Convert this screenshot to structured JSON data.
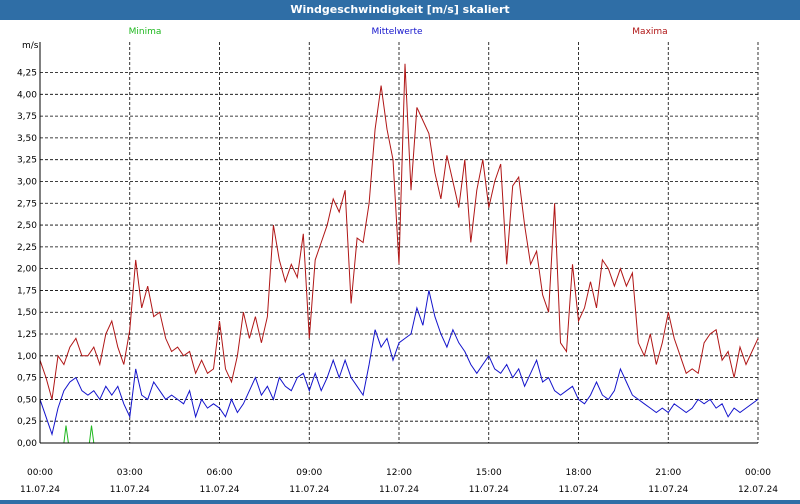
{
  "window_title": "Windgeschwindigkeit [m/s] skaliert",
  "colors": {
    "min": "#1fb81f",
    "avg": "#1414cc",
    "max": "#b01616",
    "grid": "#000000",
    "titlebar": "#2f6ea6"
  },
  "chart_data": {
    "type": "line",
    "title": "Windgeschwindigkeit [m/s] skaliert",
    "ylabel": "m/s",
    "ylim": [
      0,
      4.6
    ],
    "xlim": [
      0,
      24
    ],
    "legend": [
      "Minima",
      "Mittelwerte",
      "Maxima"
    ],
    "y_ticks": [
      "0,00",
      "0,25",
      "0,50",
      "0,75",
      "1,00",
      "1,25",
      "1,50",
      "1,75",
      "2,00",
      "2,25",
      "2,50",
      "2,75",
      "3,00",
      "3,25",
      "3,50",
      "3,75",
      "4,00",
      "4,25"
    ],
    "x_ticks": [
      {
        "time": "00:00",
        "date": "11.07.24"
      },
      {
        "time": "03:00",
        "date": "11.07.24"
      },
      {
        "time": "06:00",
        "date": "11.07.24"
      },
      {
        "time": "09:00",
        "date": "11.07.24"
      },
      {
        "time": "12:00",
        "date": "11.07.24"
      },
      {
        "time": "15:00",
        "date": "11.07.24"
      },
      {
        "time": "18:00",
        "date": "11.07.24"
      },
      {
        "time": "21:00",
        "date": "11.07.24"
      },
      {
        "time": "00:00",
        "date": "12.07.24"
      }
    ],
    "series": [
      {
        "name": "Minima",
        "key": "min",
        "points": [
          [
            0,
            0
          ],
          [
            0.8,
            0
          ],
          [
            0.87,
            0.2
          ],
          [
            0.95,
            0
          ],
          [
            1.65,
            0
          ],
          [
            1.72,
            0.2
          ],
          [
            1.8,
            0
          ],
          [
            24,
            0
          ]
        ]
      },
      {
        "name": "Mittelwerte",
        "key": "avg",
        "points": [
          [
            0,
            0.5
          ],
          [
            0.2,
            0.3
          ],
          [
            0.4,
            0.1
          ],
          [
            0.6,
            0.4
          ],
          [
            0.8,
            0.6
          ],
          [
            1,
            0.7
          ],
          [
            1.2,
            0.75
          ],
          [
            1.4,
            0.6
          ],
          [
            1.6,
            0.55
          ],
          [
            1.8,
            0.6
          ],
          [
            2,
            0.5
          ],
          [
            2.2,
            0.65
          ],
          [
            2.4,
            0.55
          ],
          [
            2.6,
            0.65
          ],
          [
            2.8,
            0.45
          ],
          [
            3,
            0.3
          ],
          [
            3.2,
            0.85
          ],
          [
            3.4,
            0.55
          ],
          [
            3.6,
            0.5
          ],
          [
            3.8,
            0.7
          ],
          [
            4,
            0.6
          ],
          [
            4.2,
            0.5
          ],
          [
            4.4,
            0.55
          ],
          [
            4.6,
            0.5
          ],
          [
            4.8,
            0.45
          ],
          [
            5,
            0.6
          ],
          [
            5.2,
            0.3
          ],
          [
            5.4,
            0.5
          ],
          [
            5.6,
            0.4
          ],
          [
            5.8,
            0.45
          ],
          [
            6,
            0.4
          ],
          [
            6.2,
            0.3
          ],
          [
            6.4,
            0.5
          ],
          [
            6.6,
            0.35
          ],
          [
            6.8,
            0.45
          ],
          [
            7,
            0.6
          ],
          [
            7.2,
            0.75
          ],
          [
            7.4,
            0.55
          ],
          [
            7.6,
            0.65
          ],
          [
            7.8,
            0.5
          ],
          [
            8,
            0.75
          ],
          [
            8.2,
            0.65
          ],
          [
            8.4,
            0.6
          ],
          [
            8.6,
            0.75
          ],
          [
            8.8,
            0.8
          ],
          [
            9,
            0.6
          ],
          [
            9.2,
            0.8
          ],
          [
            9.4,
            0.6
          ],
          [
            9.6,
            0.75
          ],
          [
            9.8,
            0.95
          ],
          [
            10,
            0.75
          ],
          [
            10.2,
            0.95
          ],
          [
            10.4,
            0.75
          ],
          [
            10.6,
            0.65
          ],
          [
            10.8,
            0.55
          ],
          [
            11,
            0.9
          ],
          [
            11.2,
            1.3
          ],
          [
            11.4,
            1.1
          ],
          [
            11.6,
            1.2
          ],
          [
            11.8,
            0.95
          ],
          [
            12,
            1.15
          ],
          [
            12.2,
            1.2
          ],
          [
            12.4,
            1.25
          ],
          [
            12.6,
            1.55
          ],
          [
            12.8,
            1.35
          ],
          [
            13,
            1.75
          ],
          [
            13.2,
            1.45
          ],
          [
            13.4,
            1.25
          ],
          [
            13.6,
            1.1
          ],
          [
            13.8,
            1.3
          ],
          [
            14,
            1.15
          ],
          [
            14.2,
            1.05
          ],
          [
            14.4,
            0.9
          ],
          [
            14.6,
            0.8
          ],
          [
            14.8,
            0.9
          ],
          [
            15,
            1.0
          ],
          [
            15.2,
            0.85
          ],
          [
            15.4,
            0.8
          ],
          [
            15.6,
            0.9
          ],
          [
            15.8,
            0.75
          ],
          [
            16,
            0.85
          ],
          [
            16.2,
            0.65
          ],
          [
            16.4,
            0.8
          ],
          [
            16.6,
            0.95
          ],
          [
            16.8,
            0.7
          ],
          [
            17,
            0.75
          ],
          [
            17.2,
            0.6
          ],
          [
            17.4,
            0.55
          ],
          [
            17.6,
            0.6
          ],
          [
            17.8,
            0.65
          ],
          [
            18,
            0.5
          ],
          [
            18.2,
            0.45
          ],
          [
            18.4,
            0.55
          ],
          [
            18.6,
            0.7
          ],
          [
            18.8,
            0.55
          ],
          [
            19,
            0.5
          ],
          [
            19.2,
            0.6
          ],
          [
            19.4,
            0.85
          ],
          [
            19.6,
            0.7
          ],
          [
            19.8,
            0.55
          ],
          [
            20,
            0.5
          ],
          [
            20.2,
            0.45
          ],
          [
            20.4,
            0.4
          ],
          [
            20.6,
            0.35
          ],
          [
            20.8,
            0.4
          ],
          [
            21,
            0.35
          ],
          [
            21.2,
            0.45
          ],
          [
            21.4,
            0.4
          ],
          [
            21.6,
            0.35
          ],
          [
            21.8,
            0.4
          ],
          [
            22,
            0.5
          ],
          [
            22.2,
            0.45
          ],
          [
            22.4,
            0.5
          ],
          [
            22.6,
            0.4
          ],
          [
            22.8,
            0.45
          ],
          [
            23,
            0.3
          ],
          [
            23.2,
            0.4
          ],
          [
            23.4,
            0.35
          ],
          [
            23.6,
            0.4
          ],
          [
            24,
            0.5
          ]
        ]
      },
      {
        "name": "Maxima",
        "key": "max",
        "points": [
          [
            0,
            0.95
          ],
          [
            0.2,
            0.75
          ],
          [
            0.4,
            0.5
          ],
          [
            0.6,
            1.0
          ],
          [
            0.8,
            0.9
          ],
          [
            1,
            1.1
          ],
          [
            1.2,
            1.2
          ],
          [
            1.4,
            1.0
          ],
          [
            1.6,
            1.0
          ],
          [
            1.8,
            1.1
          ],
          [
            2,
            0.9
          ],
          [
            2.2,
            1.25
          ],
          [
            2.4,
            1.4
          ],
          [
            2.6,
            1.1
          ],
          [
            2.8,
            0.9
          ],
          [
            3,
            1.3
          ],
          [
            3.2,
            2.1
          ],
          [
            3.4,
            1.55
          ],
          [
            3.6,
            1.8
          ],
          [
            3.8,
            1.45
          ],
          [
            4,
            1.5
          ],
          [
            4.2,
            1.2
          ],
          [
            4.4,
            1.05
          ],
          [
            4.6,
            1.1
          ],
          [
            4.8,
            1.0
          ],
          [
            5,
            1.05
          ],
          [
            5.2,
            0.8
          ],
          [
            5.4,
            0.95
          ],
          [
            5.6,
            0.8
          ],
          [
            5.8,
            0.85
          ],
          [
            6,
            1.4
          ],
          [
            6.2,
            0.85
          ],
          [
            6.4,
            0.7
          ],
          [
            6.6,
            1.0
          ],
          [
            6.8,
            1.5
          ],
          [
            7,
            1.2
          ],
          [
            7.2,
            1.45
          ],
          [
            7.4,
            1.15
          ],
          [
            7.6,
            1.45
          ],
          [
            7.8,
            2.5
          ],
          [
            8,
            2.1
          ],
          [
            8.2,
            1.85
          ],
          [
            8.4,
            2.05
          ],
          [
            8.6,
            1.9
          ],
          [
            8.8,
            2.4
          ],
          [
            9,
            1.2
          ],
          [
            9.2,
            2.1
          ],
          [
            9.4,
            2.3
          ],
          [
            9.6,
            2.5
          ],
          [
            9.8,
            2.8
          ],
          [
            10,
            2.65
          ],
          [
            10.2,
            2.9
          ],
          [
            10.4,
            1.6
          ],
          [
            10.6,
            2.35
          ],
          [
            10.8,
            2.3
          ],
          [
            11,
            2.75
          ],
          [
            11.2,
            3.6
          ],
          [
            11.4,
            4.1
          ],
          [
            11.6,
            3.6
          ],
          [
            11.8,
            3.25
          ],
          [
            12,
            2.05
          ],
          [
            12.2,
            4.35
          ],
          [
            12.4,
            2.9
          ],
          [
            12.6,
            3.85
          ],
          [
            12.8,
            3.7
          ],
          [
            13,
            3.55
          ],
          [
            13.2,
            3.1
          ],
          [
            13.4,
            2.8
          ],
          [
            13.6,
            3.3
          ],
          [
            13.8,
            3.0
          ],
          [
            14,
            2.7
          ],
          [
            14.2,
            3.25
          ],
          [
            14.4,
            2.3
          ],
          [
            14.6,
            2.9
          ],
          [
            14.8,
            3.25
          ],
          [
            15,
            2.7
          ],
          [
            15.2,
            3.0
          ],
          [
            15.4,
            3.2
          ],
          [
            15.6,
            2.05
          ],
          [
            15.8,
            2.95
          ],
          [
            16,
            3.05
          ],
          [
            16.2,
            2.5
          ],
          [
            16.4,
            2.05
          ],
          [
            16.6,
            2.2
          ],
          [
            16.8,
            1.7
          ],
          [
            17,
            1.5
          ],
          [
            17.2,
            2.75
          ],
          [
            17.4,
            1.15
          ],
          [
            17.6,
            1.05
          ],
          [
            17.8,
            2.05
          ],
          [
            18,
            1.4
          ],
          [
            18.2,
            1.55
          ],
          [
            18.4,
            1.85
          ],
          [
            18.6,
            1.55
          ],
          [
            18.8,
            2.1
          ],
          [
            19,
            2.0
          ],
          [
            19.2,
            1.8
          ],
          [
            19.4,
            2.0
          ],
          [
            19.6,
            1.8
          ],
          [
            19.8,
            1.95
          ],
          [
            20,
            1.15
          ],
          [
            20.2,
            1.0
          ],
          [
            20.4,
            1.25
          ],
          [
            20.6,
            0.9
          ],
          [
            20.8,
            1.15
          ],
          [
            21,
            1.5
          ],
          [
            21.2,
            1.2
          ],
          [
            21.4,
            1.0
          ],
          [
            21.6,
            0.8
          ],
          [
            21.8,
            0.85
          ],
          [
            22,
            0.8
          ],
          [
            22.2,
            1.15
          ],
          [
            22.4,
            1.25
          ],
          [
            22.6,
            1.3
          ],
          [
            22.8,
            0.95
          ],
          [
            23,
            1.05
          ],
          [
            23.2,
            0.75
          ],
          [
            23.4,
            1.1
          ],
          [
            23.6,
            0.9
          ],
          [
            24,
            1.2
          ]
        ]
      }
    ]
  }
}
